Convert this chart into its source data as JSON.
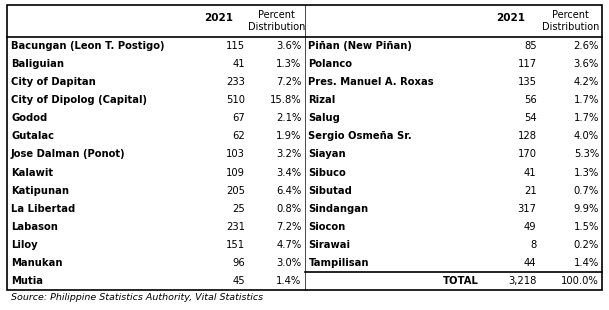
{
  "left_rows": [
    [
      "Bacungan (Leon T. Postigo)",
      "115",
      "3.6%"
    ],
    [
      "Baliguian",
      "41",
      "1.3%"
    ],
    [
      "City of Dapitan",
      "233",
      "7.2%"
    ],
    [
      "City of Dipolog (Capital)",
      "510",
      "15.8%"
    ],
    [
      "Godod",
      "67",
      "2.1%"
    ],
    [
      "Gutalac",
      "62",
      "1.9%"
    ],
    [
      "Jose Dalman (Ponot)",
      "103",
      "3.2%"
    ],
    [
      "Kalawit",
      "109",
      "3.4%"
    ],
    [
      "Katipunan",
      "205",
      "6.4%"
    ],
    [
      "La Libertad",
      "25",
      "0.8%"
    ],
    [
      "Labason",
      "231",
      "7.2%"
    ],
    [
      "Liloy",
      "151",
      "4.7%"
    ],
    [
      "Manukan",
      "96",
      "3.0%"
    ],
    [
      "Mutia",
      "45",
      "1.4%"
    ]
  ],
  "right_rows": [
    [
      "Piñan (New Piñan)",
      "85",
      "2.6%"
    ],
    [
      "Polanco",
      "117",
      "3.6%"
    ],
    [
      "Pres. Manuel A. Roxas",
      "135",
      "4.2%"
    ],
    [
      "Rizal",
      "56",
      "1.7%"
    ],
    [
      "Salug",
      "54",
      "1.7%"
    ],
    [
      "Sergio Osmeña Sr.",
      "128",
      "4.0%"
    ],
    [
      "Siayan",
      "170",
      "5.3%"
    ],
    [
      "Sibuco",
      "41",
      "1.3%"
    ],
    [
      "Sibutad",
      "21",
      "0.7%"
    ],
    [
      "Sindangan",
      "317",
      "9.9%"
    ],
    [
      "Siocon",
      "49",
      "1.5%"
    ],
    [
      "Sirawai",
      "8",
      "0.2%"
    ],
    [
      "Tampilisan",
      "44",
      "1.4%"
    ],
    [
      "TOTAL",
      "3,218",
      "100.0%"
    ]
  ],
  "source": "Source: Philippine Statistics Authority, Vital Statistics",
  "bg_color": "#ffffff",
  "border_color": "#000000",
  "text_color": "#000000",
  "figw": 6.09,
  "figh": 3.1,
  "dpi": 100
}
